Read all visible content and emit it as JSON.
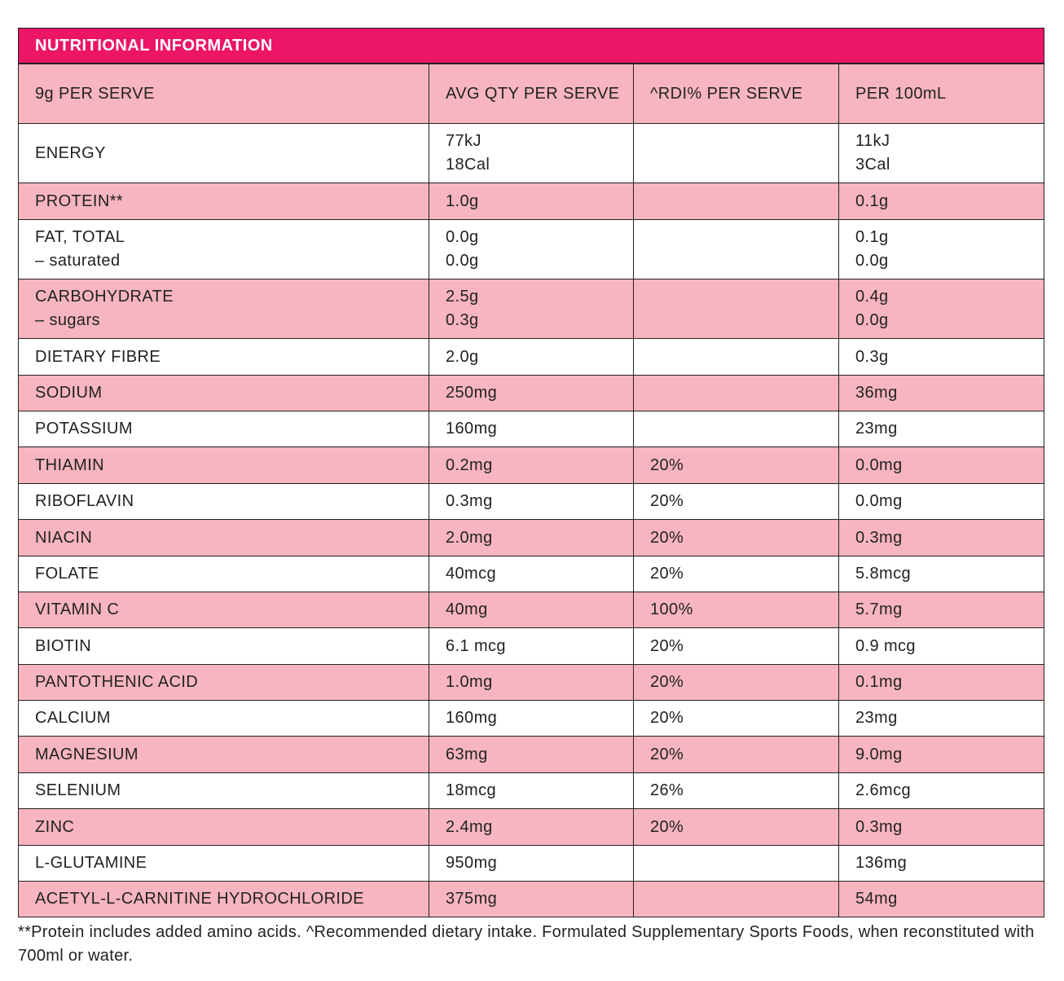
{
  "title": "NUTRITIONAL INFORMATION",
  "header": [
    "9g PER SERVE",
    "AVG QTY PER SERVE",
    "^RDI% PER SERVE",
    "PER 100mL"
  ],
  "colors": {
    "accent": "#ec1566",
    "row_pink": "#f7b5bf",
    "row_white": "#ffffff"
  },
  "rows": [
    {
      "name": [
        "ENERGY"
      ],
      "avg": [
        "77kJ",
        "18Cal"
      ],
      "rdi": [],
      "per100": [
        "11kJ",
        "3Cal"
      ]
    },
    {
      "name": [
        "PROTEIN**"
      ],
      "avg": [
        "1.0g"
      ],
      "rdi": [],
      "per100": [
        "0.1g"
      ]
    },
    {
      "name": [
        "FAT, TOTAL",
        "– saturated"
      ],
      "avg": [
        "0.0g",
        "0.0g"
      ],
      "rdi": [],
      "per100": [
        "0.1g",
        "0.0g"
      ]
    },
    {
      "name": [
        "CARBOHYDRATE",
        "– sugars"
      ],
      "avg": [
        "2.5g",
        "0.3g"
      ],
      "rdi": [],
      "per100": [
        "0.4g",
        "0.0g"
      ]
    },
    {
      "name": [
        "DIETARY FIBRE"
      ],
      "avg": [
        "2.0g"
      ],
      "rdi": [],
      "per100": [
        "0.3g"
      ]
    },
    {
      "name": [
        "SODIUM"
      ],
      "avg": [
        "250mg"
      ],
      "rdi": [],
      "per100": [
        "36mg"
      ]
    },
    {
      "name": [
        "POTASSIUM"
      ],
      "avg": [
        "160mg"
      ],
      "rdi": [],
      "per100": [
        "23mg"
      ]
    },
    {
      "name": [
        "THIAMIN"
      ],
      "avg": [
        "0.2mg"
      ],
      "rdi": [
        "20%"
      ],
      "per100": [
        "0.0mg"
      ]
    },
    {
      "name": [
        "RIBOFLAVIN"
      ],
      "avg": [
        "0.3mg"
      ],
      "rdi": [
        "20%"
      ],
      "per100": [
        "0.0mg"
      ]
    },
    {
      "name": [
        "NIACIN"
      ],
      "avg": [
        "2.0mg"
      ],
      "rdi": [
        "20%"
      ],
      "per100": [
        "0.3mg"
      ]
    },
    {
      "name": [
        "FOLATE"
      ],
      "avg": [
        "40mcg"
      ],
      "rdi": [
        "20%"
      ],
      "per100": [
        "5.8mcg"
      ]
    },
    {
      "name": [
        "VITAMIN C"
      ],
      "avg": [
        "40mg"
      ],
      "rdi": [
        "100%"
      ],
      "per100": [
        "5.7mg"
      ]
    },
    {
      "name": [
        "BIOTIN"
      ],
      "avg": [
        "6.1 mcg"
      ],
      "rdi": [
        "20%"
      ],
      "per100": [
        "0.9 mcg"
      ]
    },
    {
      "name": [
        "PANTOTHENIC ACID"
      ],
      "avg": [
        "1.0mg"
      ],
      "rdi": [
        "20%"
      ],
      "per100": [
        "0.1mg"
      ]
    },
    {
      "name": [
        "CALCIUM"
      ],
      "avg": [
        "160mg"
      ],
      "rdi": [
        "20%"
      ],
      "per100": [
        "23mg"
      ]
    },
    {
      "name": [
        "MAGNESIUM"
      ],
      "avg": [
        "63mg"
      ],
      "rdi": [
        "20%"
      ],
      "per100": [
        "9.0mg"
      ]
    },
    {
      "name": [
        "SELENIUM"
      ],
      "avg": [
        "18mcg"
      ],
      "rdi": [
        "26%"
      ],
      "per100": [
        "2.6mcg"
      ]
    },
    {
      "name": [
        "ZINC"
      ],
      "avg": [
        "2.4mg"
      ],
      "rdi": [
        "20%"
      ],
      "per100": [
        "0.3mg"
      ]
    },
    {
      "name": [
        "L-GLUTAMINE"
      ],
      "avg": [
        "950mg"
      ],
      "rdi": [],
      "per100": [
        "136mg"
      ]
    },
    {
      "name": [
        "ACETYL-L-CARNITINE HYDROCHLORIDE"
      ],
      "avg": [
        "375mg"
      ],
      "rdi": [],
      "per100": [
        "54mg"
      ]
    }
  ],
  "footnote": "**Protein includes added amino acids. ^Recommended dietary intake. Formulated Supplementary Sports Foods, when reconstituted with 700ml or water."
}
